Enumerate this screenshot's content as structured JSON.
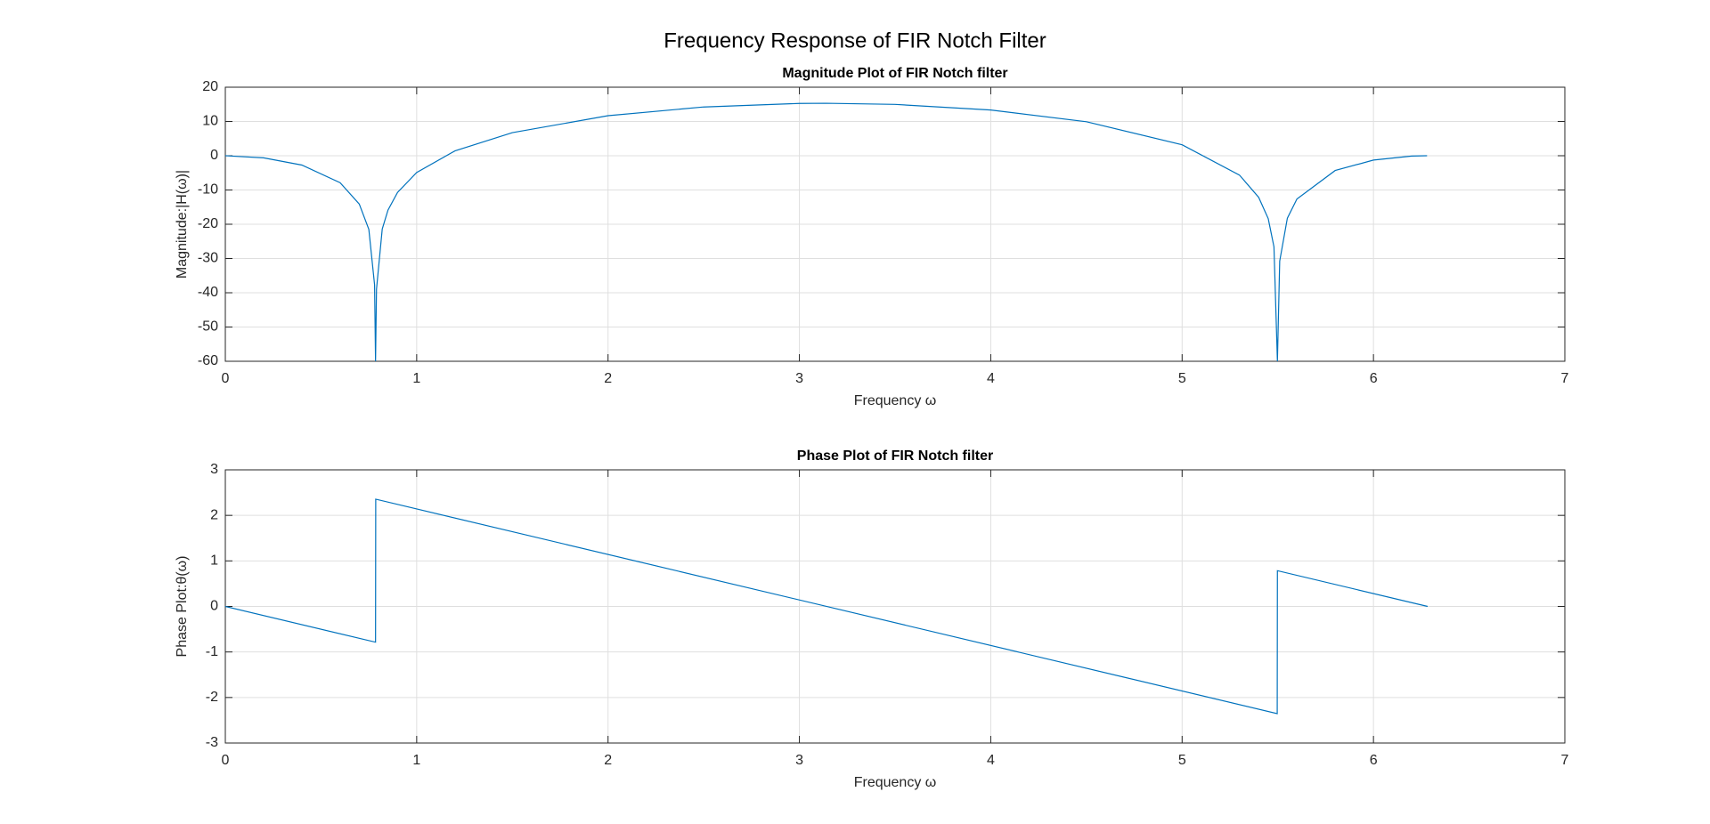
{
  "title": "Frequency Response of FIR Notch Filter",
  "chart_data": [
    {
      "type": "line",
      "title": "Magnitude Plot of FIR Notch filter",
      "xlabel": "Frequency ω",
      "ylabel": "Magnitude:|H(ω)|",
      "x": [
        0,
        0.2,
        0.4,
        0.6,
        0.7,
        0.75,
        0.78,
        0.785,
        0.79,
        0.82,
        0.85,
        0.9,
        1.0,
        1.2,
        1.5,
        2.0,
        2.5,
        3.0,
        3.14,
        3.5,
        4.0,
        4.5,
        5.0,
        5.3,
        5.4,
        5.45,
        5.48,
        5.498,
        5.51,
        5.55,
        5.6,
        5.8,
        6.0,
        6.2,
        6.28
      ],
      "values": [
        0,
        -0.61,
        -2.73,
        -7.88,
        -14.11,
        -21.5,
        -37.7,
        -60,
        -38.96,
        -21.4,
        -15.87,
        -10.7,
        -4.89,
        1.41,
        6.74,
        11.68,
        14.23,
        15.26,
        15.31,
        14.98,
        13.34,
        9.92,
        3.2,
        -5.66,
        -12.14,
        -18.35,
        -26.6,
        -60,
        -30.75,
        -18.23,
        -12.62,
        -4.31,
        -1.27,
        -0.1,
        0
      ],
      "color": "#0072bd",
      "xlim": [
        0,
        7
      ],
      "ylim": [
        -60,
        20
      ],
      "xticks": [
        0,
        1,
        2,
        3,
        4,
        5,
        6,
        7
      ],
      "yticks": [
        -60,
        -50,
        -40,
        -30,
        -20,
        -10,
        0,
        10,
        20
      ],
      "grid": true
    },
    {
      "type": "line",
      "title": "Phase Plot of FIR Notch filter",
      "xlabel": "Frequency ω",
      "ylabel": "Phase Plot:θ(ω)",
      "x": [
        0,
        0.785,
        0.786,
        5.497,
        5.498,
        6.283
      ],
      "values": [
        0,
        -0.785,
        2.356,
        -2.355,
        0.785,
        0
      ],
      "color": "#0072bd",
      "xlim": [
        0,
        7
      ],
      "ylim": [
        -3,
        3
      ],
      "xticks": [
        0,
        1,
        2,
        3,
        4,
        5,
        6,
        7
      ],
      "yticks": [
        -3,
        -2,
        -1,
        0,
        1,
        2,
        3
      ],
      "grid": true
    }
  ]
}
